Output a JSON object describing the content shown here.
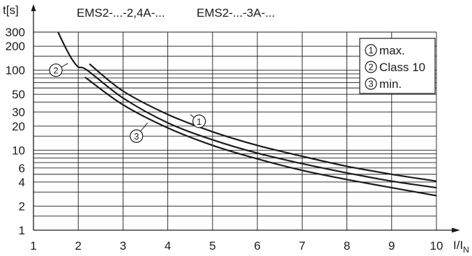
{
  "chart_data": {
    "type": "line",
    "header": {
      "t_label": "t[s]",
      "model_a": "EMS2-...-2,4A-...",
      "model_b": "EMS2-...-3A-..."
    },
    "x_axis": {
      "label_main": "I/I",
      "label_sub": "N",
      "scale": "linear",
      "range": [
        1,
        10
      ],
      "ticks": [
        "1",
        "2",
        "3",
        "4",
        "5",
        "6",
        "7",
        "8",
        "9",
        "10"
      ]
    },
    "y_axis": {
      "scale": "log",
      "range": [
        1,
        300
      ],
      "ticks": [
        {
          "v": 1,
          "t": "1"
        },
        {
          "v": 2,
          "t": "2"
        },
        {
          "v": 4,
          "t": "4"
        },
        {
          "v": 6,
          "t": "6"
        },
        {
          "v": 10,
          "t": "10"
        },
        {
          "v": 20,
          "t": "20"
        },
        {
          "v": 30,
          "t": "30"
        },
        {
          "v": 50,
          "t": "50"
        },
        {
          "v": 100,
          "t": "100"
        },
        {
          "v": 200,
          "t": "200"
        },
        {
          "v": 300,
          "t": "300"
        }
      ],
      "gridlines": [
        1,
        1.5,
        2,
        3,
        4,
        5,
        6,
        7,
        8,
        9,
        10,
        15,
        20,
        30,
        40,
        50,
        60,
        70,
        80,
        90,
        100,
        150,
        200,
        300
      ]
    },
    "grid": true,
    "legend": {
      "placement": "top-right",
      "items": [
        {
          "marker": "1",
          "label": "max."
        },
        {
          "marker": "2",
          "label": "Class 10"
        },
        {
          "marker": "3",
          "label": "min."
        }
      ]
    },
    "series": [
      {
        "marker": "1",
        "x": [
          2.25,
          3,
          4,
          5,
          6,
          7,
          8,
          9,
          10
        ],
        "y": [
          120,
          55,
          28,
          17,
          11.5,
          8.4,
          6.3,
          5,
          4.1
        ]
      },
      {
        "marker": "2",
        "x": [
          1.55,
          1.7,
          1.85,
          2,
          2.2,
          3,
          4,
          5,
          6,
          7,
          8,
          9,
          10
        ],
        "y": [
          300,
          200,
          140,
          110,
          100,
          45,
          22,
          13.5,
          9.2,
          6.8,
          5.2,
          4.1,
          3.4
        ]
      },
      {
        "marker": "3",
        "x": [
          2.15,
          3,
          4,
          5,
          6,
          7,
          8,
          9,
          10
        ],
        "y": [
          82,
          37,
          19,
          11.5,
          7.8,
          5.6,
          4.3,
          3.4,
          2.7
        ]
      }
    ],
    "annotations": [
      {
        "marker": "1",
        "at": [
          4.7,
          23
        ]
      },
      {
        "marker": "2",
        "at": [
          1.5,
          100
        ]
      },
      {
        "marker": "3",
        "at": [
          3.3,
          15
        ]
      }
    ]
  }
}
